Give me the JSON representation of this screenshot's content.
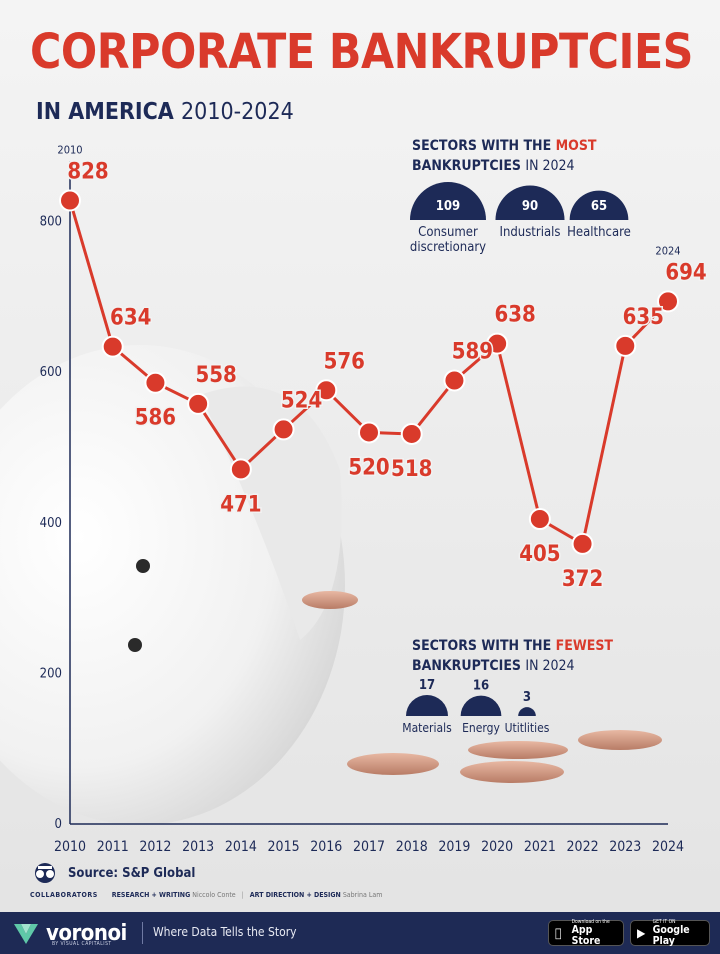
{
  "header": {
    "title": "CORPORATE BANKRUPTCIES",
    "subtitle_lead": "IN AMERICA",
    "subtitle_years": "2010-2024"
  },
  "chart_data": {
    "type": "line",
    "title": "CORPORATE BANKRUPTCIES",
    "subtitle": "IN AMERICA 2010-2024",
    "x": [
      "2010",
      "2011",
      "2012",
      "2013",
      "2014",
      "2015",
      "2016",
      "2017",
      "2018",
      "2019",
      "2020",
      "2021",
      "2022",
      "2023",
      "2024"
    ],
    "series": [
      {
        "values": [
          828,
          634,
          586,
          558,
          471,
          524,
          576,
          520,
          518,
          589,
          638,
          405,
          372,
          635,
          694
        ]
      }
    ],
    "y_ticks": [
      0,
      200,
      400,
      600,
      800
    ],
    "ylim": [
      0,
      880
    ],
    "grid": false,
    "line_color": "#d93a2b",
    "axis_color": "#1d2a57",
    "start_year_label": "2010",
    "end_year_label": "2024",
    "label_side": [
      "above",
      "above",
      "below",
      "above",
      "below",
      "above",
      "above",
      "below",
      "below",
      "above",
      "above",
      "below",
      "below",
      "above",
      "above"
    ]
  },
  "sectors_most": {
    "heading_pre": "SECTORS WITH THE",
    "heading_accent": "MOST",
    "heading_line2_pre": "BANKRUPTCIES",
    "heading_line2_post": "IN 2024",
    "accent_color": "#d93a2b",
    "items": [
      {
        "value": "109",
        "label_lines": [
          "Consumer",
          "discretionary"
        ]
      },
      {
        "value": "90",
        "label_lines": [
          "Industrials"
        ]
      },
      {
        "value": "65",
        "label_lines": [
          "Healthcare"
        ]
      }
    ]
  },
  "sectors_fewest": {
    "heading_pre": "SECTORS WITH THE",
    "heading_accent": "FEWEST",
    "heading_line2_pre": "BANKRUPTCIES",
    "heading_line2_post": "IN 2024",
    "items": [
      {
        "value": "17",
        "label": "Materials"
      },
      {
        "value": "16",
        "label": "Energy"
      },
      {
        "value": "3",
        "label": "Utitlities"
      }
    ]
  },
  "source": {
    "text": "Source: S&P Global",
    "icon": "visual-capitalist-logo-icon"
  },
  "collaborators": {
    "heading": "COLLABORATORS",
    "research_label": "RESEARCH + WRITING",
    "research_name": "Niccolo Conte",
    "art_label": "ART DIRECTION + DESIGN",
    "art_name": "Sabrina Lam"
  },
  "footer": {
    "brand": "voronoi",
    "brand_sub": "BY VISUAL CAPITALIST",
    "tagline": "Where Data Tells the Story",
    "app_store_small": "Download on the",
    "app_store_big": "App Store",
    "google_play_small": "GET IT ON",
    "google_play_big": "Google Play",
    "bg_color": "#1e2a55"
  }
}
